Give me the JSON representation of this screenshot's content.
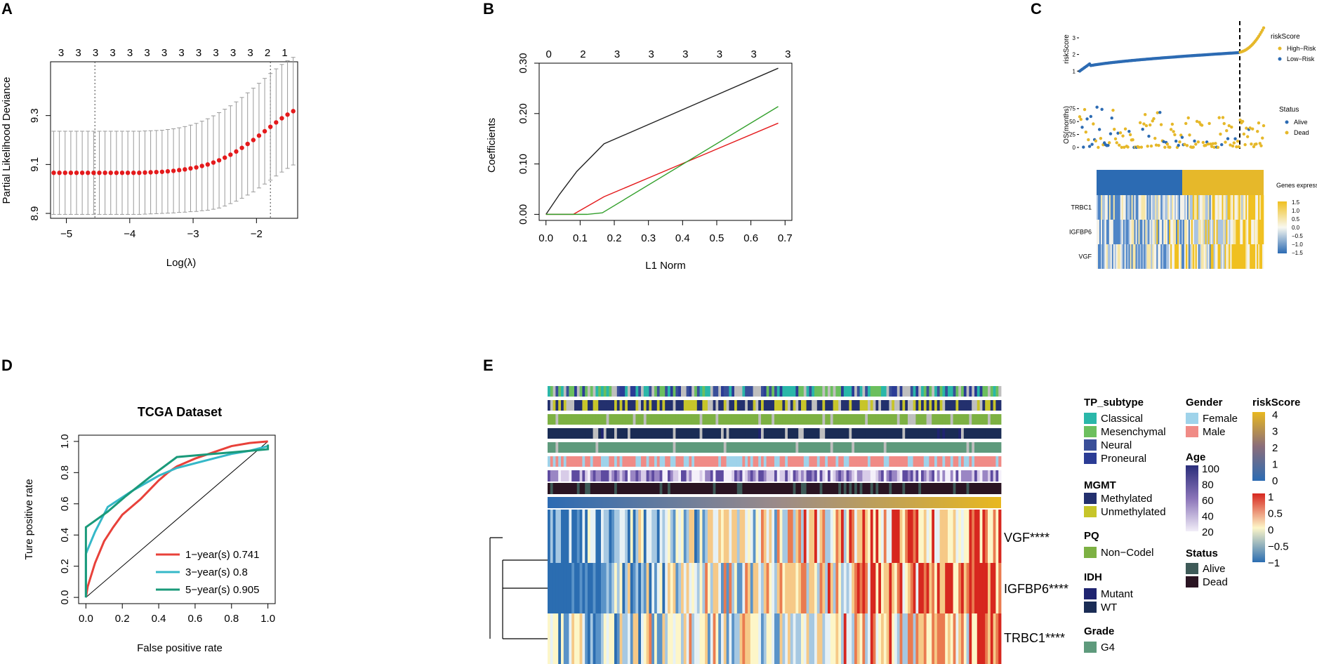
{
  "panel_labels": [
    "A",
    "B",
    "C",
    "D",
    "E"
  ],
  "colors": {
    "red": "#e41a1c",
    "black": "#222222",
    "green": "#33a02c",
    "gray": "#9a9a9a",
    "blue": "#2c6bb3",
    "gold": "#e6b82a",
    "roc1": "#e8413a",
    "roc3": "#35b8c8",
    "roc5": "#1a9a7a",
    "classical": "#2ab7a9",
    "mesenchymal": "#6cbf5e",
    "neural": "#3a4f99",
    "proneural": "#2b3c95",
    "methylated": "#23306e",
    "unmethylated": "#c7c52a",
    "noncodel": "#7db143",
    "mutant": "#1f2470",
    "wt": "#1a2c55",
    "g4": "#5e9a7c",
    "female": "#9fd3ea",
    "male": "#f08b86",
    "alive": "#3e5a58",
    "dead": "#2a1422"
  },
  "chart_data": [
    {
      "panel": "A",
      "type": "scatter",
      "title": "",
      "xlabel": "Log(λ)",
      "ylabel": "Partial Likelihood Deviance",
      "xlim": [
        -5.25,
        -1.35
      ],
      "ylim": [
        8.88,
        9.52
      ],
      "xticks": [
        "−5",
        "−4",
        "−3",
        "−2"
      ],
      "yticks": [
        "8.9",
        "9.1",
        "9.3"
      ],
      "top_axis_labels": [
        "3",
        "3",
        "3",
        "3",
        "3",
        "3",
        "3",
        "3",
        "3",
        "3",
        "3",
        "3",
        "2",
        "1"
      ],
      "vlines": [
        -4.55,
        -1.78
      ],
      "series": [
        {
          "name": "cv deviance",
          "x_start": -5.2,
          "x_step": 0.09,
          "count": 43,
          "values": [
            9.066,
            9.066,
            9.066,
            9.066,
            9.066,
            9.066,
            9.066,
            9.066,
            9.066,
            9.066,
            9.066,
            9.066,
            9.066,
            9.066,
            9.066,
            9.066,
            9.067,
            9.068,
            9.069,
            9.07,
            9.072,
            9.074,
            9.077,
            9.08,
            9.084,
            9.088,
            9.094,
            9.1,
            9.108,
            9.117,
            9.128,
            9.14,
            9.153,
            9.168,
            9.184,
            9.2,
            9.218,
            9.236,
            9.254,
            9.272,
            9.289,
            9.304,
            9.318
          ],
          "error": [
            0.17,
            0.17,
            0.17,
            0.17,
            0.17,
            0.17,
            0.17,
            0.17,
            0.17,
            0.17,
            0.17,
            0.17,
            0.17,
            0.17,
            0.17,
            0.17,
            0.17,
            0.17,
            0.17,
            0.17,
            0.171,
            0.172,
            0.173,
            0.175,
            0.177,
            0.18,
            0.183,
            0.187,
            0.191,
            0.195,
            0.198,
            0.2,
            0.203,
            0.206,
            0.209,
            0.212,
            0.214,
            0.216,
            0.218,
            0.219,
            0.22,
            0.22,
            0.22
          ]
        }
      ]
    },
    {
      "panel": "B",
      "type": "line",
      "title": "",
      "xlabel": "L1 Norm",
      "ylabel": "Coefficients",
      "xlim": [
        -0.02,
        0.72
      ],
      "ylim": [
        -0.012,
        0.3
      ],
      "xticks": [
        "0.0",
        "0.1",
        "0.2",
        "0.3",
        "0.4",
        "0.5",
        "0.6",
        "0.7"
      ],
      "yticks": [
        "0.00",
        "0.10",
        "0.20",
        "0.30"
      ],
      "top_axis_labels": [
        "0",
        "2",
        "3",
        "3",
        "3",
        "3",
        "3",
        "3"
      ],
      "series": [
        {
          "name": "black",
          "x": [
            0,
            0.04,
            0.09,
            0.17,
            0.68
          ],
          "values": [
            0,
            0.04,
            0.085,
            0.14,
            0.29
          ]
        },
        {
          "name": "red",
          "x": [
            0,
            0.08,
            0.17,
            0.68
          ],
          "values": [
            0,
            0,
            0.035,
            0.181
          ]
        },
        {
          "name": "green",
          "x": [
            0,
            0.12,
            0.165,
            0.68
          ],
          "values": [
            0,
            0,
            0.003,
            0.214
          ]
        }
      ]
    },
    {
      "panel": "C",
      "type": "scatter",
      "riskScore": {
        "ylabel": "riskScore",
        "yticks": [
          "1",
          "2",
          "3"
        ],
        "legend_title": "riskScore",
        "legend": [
          "High−Risk",
          "Low−Risk"
        ],
        "ylim": [
          0.8,
          3.8
        ]
      },
      "os": {
        "ylabel": "OS(months)",
        "yticks": [
          "0",
          "25",
          "50",
          "75"
        ],
        "legend_title": "Status",
        "legend": [
          "Alive",
          "Dead"
        ],
        "ylim": [
          0,
          95
        ]
      },
      "heatmap": {
        "genes": [
          "TRBC1",
          "IGFBP6",
          "VGF"
        ],
        "legend_title": "Genes expression",
        "scale_ticks": [
          "1.5",
          "1.0",
          "0.5",
          "0.0",
          "−0.5",
          "−1.0",
          "−1.5"
        ]
      }
    },
    {
      "panel": "D",
      "type": "line",
      "title": "TCGA Dataset",
      "xlabel": "False positive rate",
      "ylabel": "Ture positive rate",
      "xlim": [
        -0.04,
        1.04
      ],
      "ylim": [
        -0.04,
        1.04
      ],
      "xticks": [
        "0.0",
        "0.2",
        "0.4",
        "0.6",
        "0.8",
        "1.0"
      ],
      "yticks": [
        "0.0",
        "0.2",
        "0.4",
        "0.6",
        "0.8",
        "1.0"
      ],
      "series": [
        {
          "name": "1−year(s) 0.741",
          "x": [
            0,
            0.01,
            0.05,
            0.1,
            0.15,
            0.2,
            0.25,
            0.3,
            0.35,
            0.4,
            0.45,
            0.5,
            0.6,
            0.7,
            0.8,
            0.9,
            1.0
          ],
          "values": [
            0,
            0.07,
            0.22,
            0.36,
            0.45,
            0.53,
            0.58,
            0.63,
            0.69,
            0.75,
            0.8,
            0.84,
            0.89,
            0.93,
            0.97,
            0.99,
            1.0
          ]
        },
        {
          "name": "3−year(s) 0.8",
          "x": [
            0,
            0.0,
            0.05,
            0.12,
            0.25,
            0.4,
            0.5,
            0.6,
            0.7,
            0.8,
            0.9,
            1.0
          ],
          "values": [
            0,
            0.28,
            0.42,
            0.58,
            0.68,
            0.78,
            0.83,
            0.86,
            0.89,
            0.92,
            0.94,
            0.97
          ]
        },
        {
          "name": "5−year(s) 0.905",
          "x": [
            0,
            0,
            0.12,
            0.22,
            0.35,
            0.5,
            0.6,
            0.7,
            0.8,
            1.0,
            1.0
          ],
          "values": [
            0,
            0.45,
            0.55,
            0.65,
            0.77,
            0.9,
            0.91,
            0.92,
            0.93,
            0.95,
            0.98
          ]
        }
      ]
    },
    {
      "panel": "E",
      "type": "heatmap",
      "rows": [
        "VGF****",
        "IGFBP6****",
        "TRBC1****"
      ],
      "annotation_tracks": [
        "TP_subtype",
        "MGMT",
        "PQ",
        "IDH",
        "Grade",
        "Gender",
        "Age",
        "Status",
        "riskScore"
      ],
      "legend": {
        "TP_subtype": [
          "Classical",
          "Mesenchymal",
          "Neural",
          "Proneural"
        ],
        "MGMT": [
          "Methylated",
          "Unmethylated"
        ],
        "PQ": [
          "Non−Codel"
        ],
        "IDH": [
          "Mutant",
          "WT"
        ],
        "Grade": [
          "G4"
        ],
        "Gender": [
          "Female",
          "Male"
        ],
        "Age": {
          "title": "Age",
          "ticks": [
            "100",
            "80",
            "60",
            "40",
            "20"
          ]
        },
        "Status": [
          "Alive",
          "Dead"
        ],
        "riskScore": {
          "title": "riskScore",
          "ticks": [
            "4",
            "3",
            "2",
            "1",
            "0"
          ]
        },
        "expression_ticks": [
          "1",
          "0.5",
          "0",
          "−0.5",
          "−1"
        ]
      }
    }
  ]
}
